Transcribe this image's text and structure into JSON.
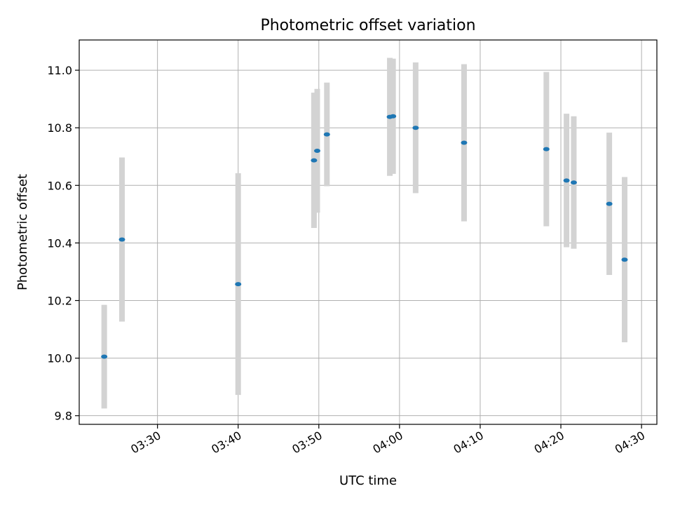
{
  "chart_data": {
    "type": "scatter",
    "title": "Photometric offset variation",
    "xlabel": "UTC time",
    "ylabel": "Photometric offset",
    "xlim": [
      "03:20:18",
      "04:31:54"
    ],
    "ylim": [
      9.77,
      11.105
    ],
    "x_ticks": [
      "03:30",
      "03:40",
      "03:50",
      "04:00",
      "04:10",
      "04:20",
      "04:30"
    ],
    "y_ticks": [
      "9.8",
      "10.0",
      "10.2",
      "10.4",
      "10.6",
      "10.8",
      "11.0"
    ],
    "grid": true,
    "colors": {
      "points": "#1f77b4",
      "errorbars": "#d3d3d3",
      "grid": "#b0b0b0"
    },
    "series": [
      {
        "points": [
          {
            "x": "03:23:24",
            "y": 10.005,
            "yerr": 0.18
          },
          {
            "x": "03:25:36",
            "y": 10.412,
            "yerr": 0.285
          },
          {
            "x": "03:40:00",
            "y": 10.257,
            "yerr": 0.385
          },
          {
            "x": "03:49:24",
            "y": 10.687,
            "yerr": 0.235
          },
          {
            "x": "03:49:48",
            "y": 10.72,
            "yerr": 0.215
          },
          {
            "x": "03:51:00",
            "y": 10.777,
            "yerr": 0.18
          },
          {
            "x": "03:58:48",
            "y": 10.838,
            "yerr": 0.205
          },
          {
            "x": "03:59:12",
            "y": 10.84,
            "yerr": 0.2
          },
          {
            "x": "04:02:00",
            "y": 10.8,
            "yerr": 0.227
          },
          {
            "x": "04:08:00",
            "y": 10.748,
            "yerr": 0.273
          },
          {
            "x": "04:18:12",
            "y": 10.726,
            "yerr": 0.268
          },
          {
            "x": "04:20:42",
            "y": 10.617,
            "yerr": 0.232
          },
          {
            "x": "04:21:36",
            "y": 10.61,
            "yerr": 0.23
          },
          {
            "x": "04:26:00",
            "y": 10.536,
            "yerr": 0.247
          },
          {
            "x": "04:27:54",
            "y": 10.342,
            "yerr": 0.287
          }
        ]
      }
    ]
  }
}
